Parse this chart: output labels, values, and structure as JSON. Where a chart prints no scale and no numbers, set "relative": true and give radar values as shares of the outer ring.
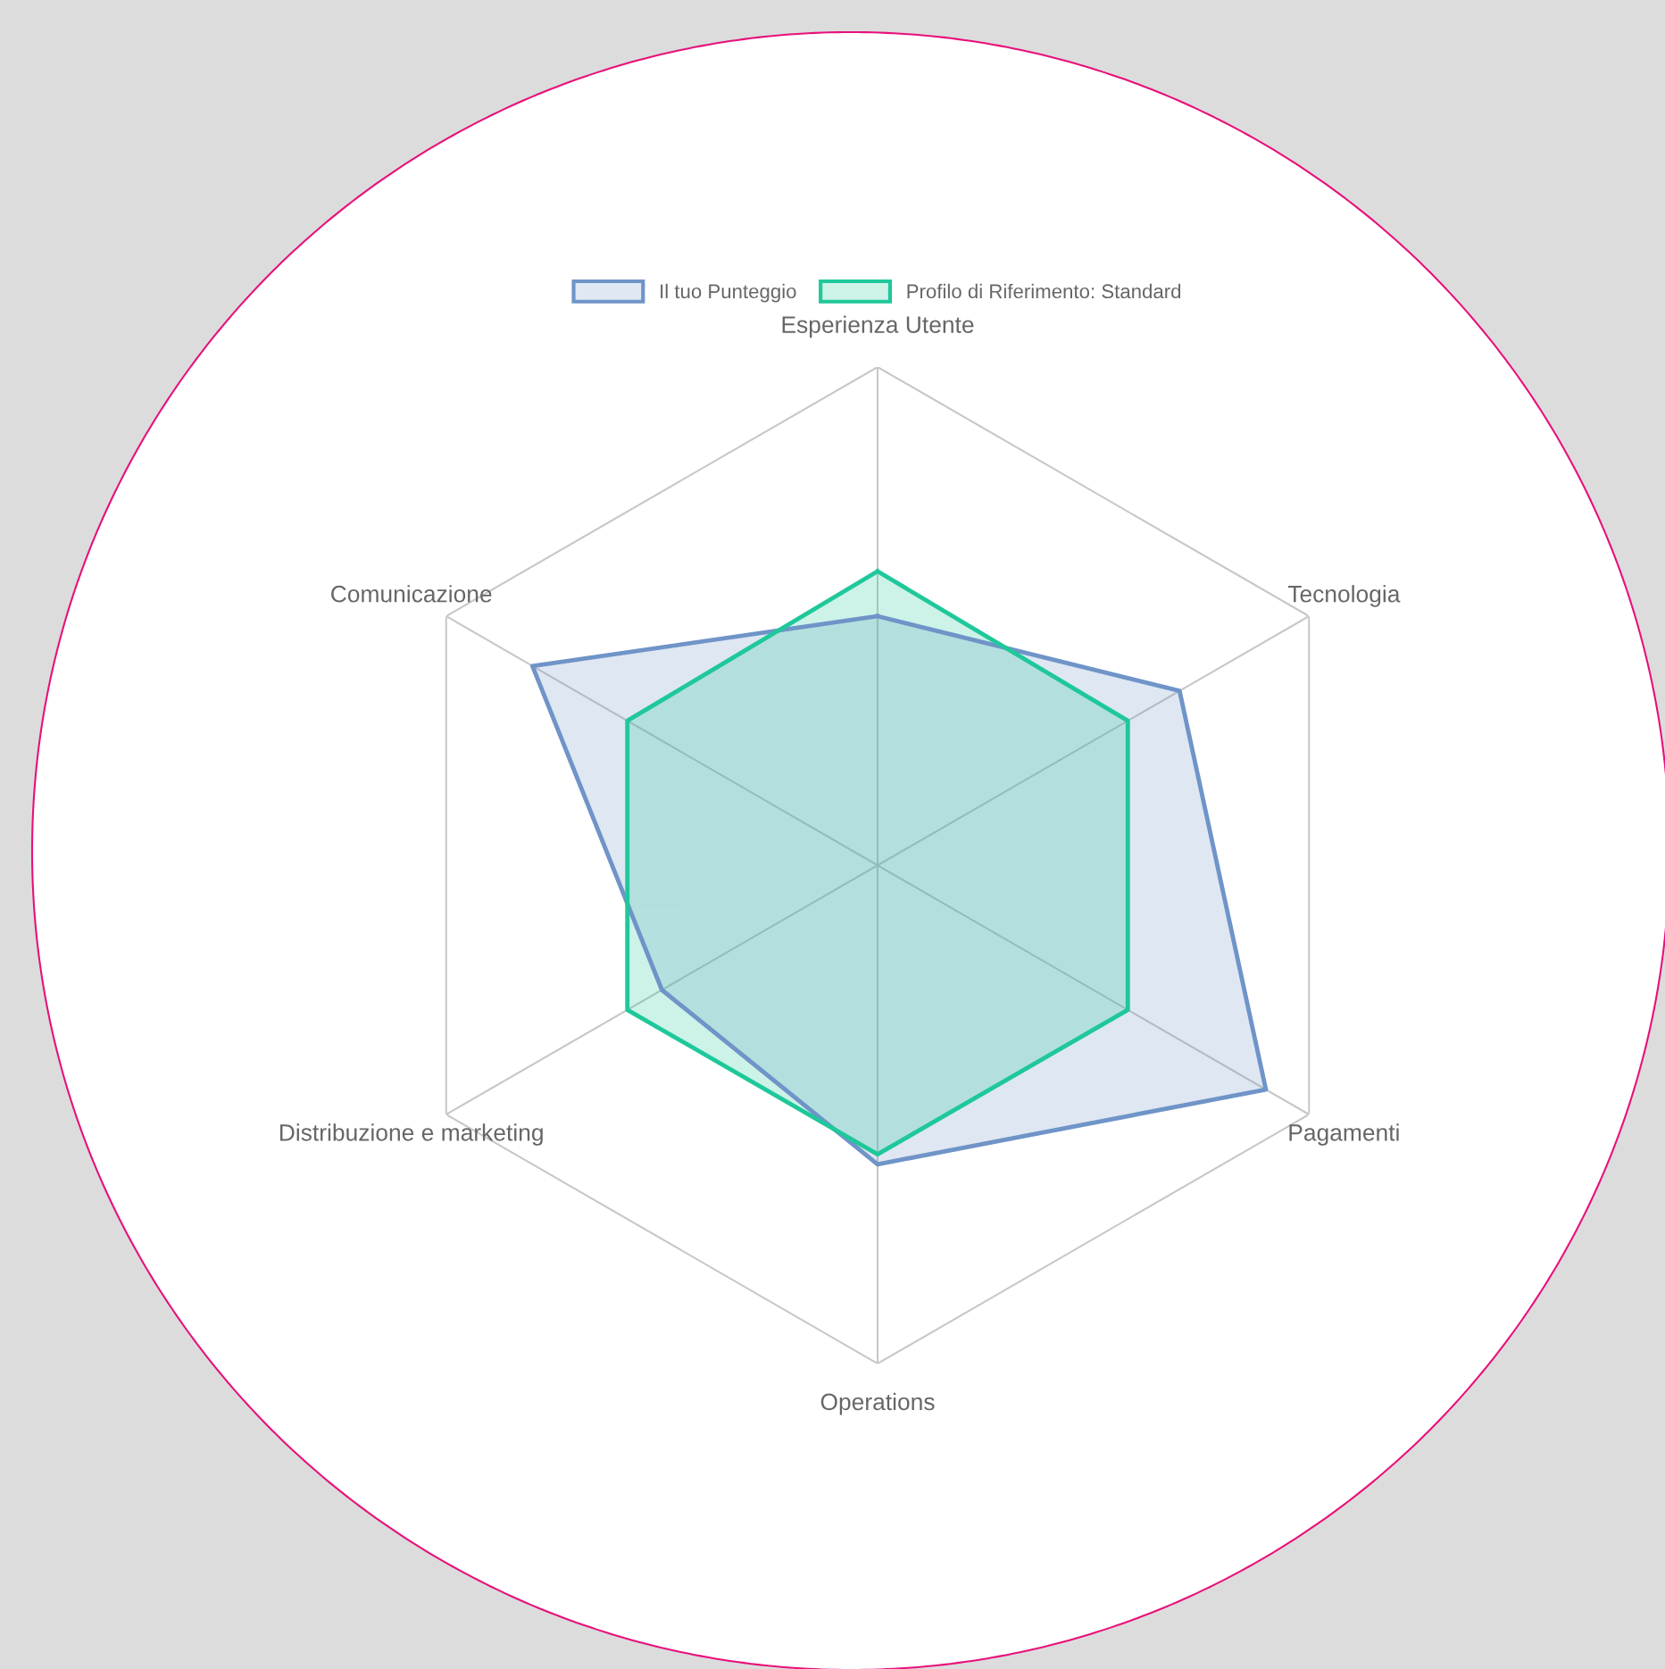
{
  "chart_data": {
    "type": "radar",
    "relative": true,
    "categories": [
      "Esperienza Utente",
      "Tecnologia",
      "Pagamenti",
      "Operations",
      "Distribuzione e marketing",
      "Comunicazione"
    ],
    "series": [
      {
        "name": "Il tuo Punteggio",
        "color": "#6f94c8",
        "values": [
          0.5,
          0.7,
          0.9,
          0.6,
          0.5,
          0.8
        ]
      },
      {
        "name": "Profilo di Riferimento: Standard",
        "color": "#1fc89a",
        "values": [
          0.59,
          0.58,
          0.58,
          0.58,
          0.58,
          0.58
        ]
      }
    ],
    "grid": true,
    "legend": "top"
  }
}
